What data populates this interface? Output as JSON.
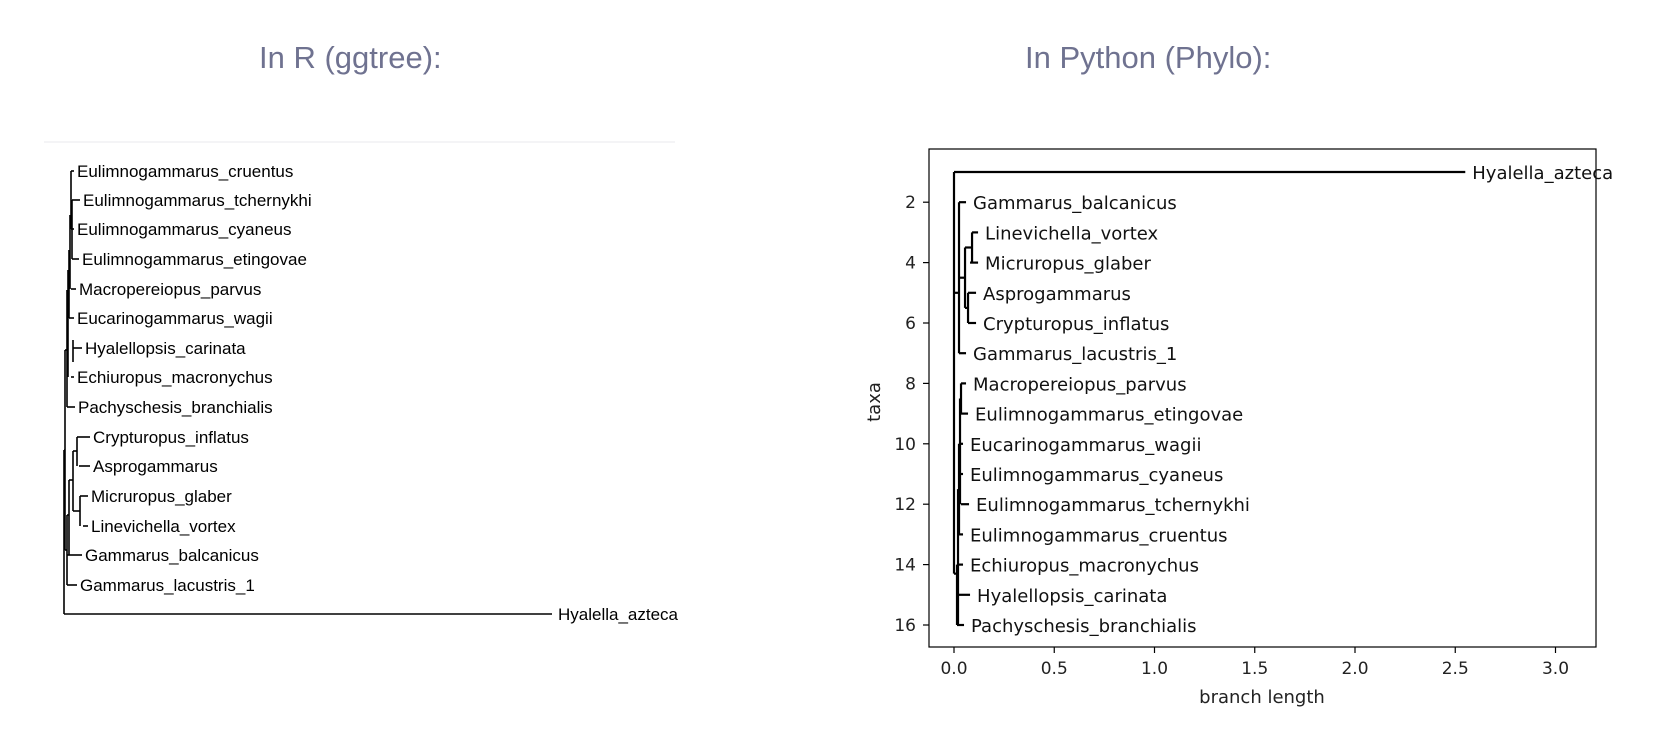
{
  "titles": {
    "left": "In R (ggtree):",
    "right": "In Python (Phylo):"
  },
  "colors": {
    "title": "#6f7290",
    "line": "#000000",
    "divider": "#e9e9ee"
  },
  "left_tree": {
    "tips": [
      "Eulimnogammarus_cruentus",
      "Eulimnogammarus_tchernykhi",
      "Eulimnogammarus_cyaneus",
      "Eulimnogammarus_etingovae",
      "Macropereiopus_parvus",
      "Eucarinogammarus_wagii",
      "Hyalellopsis_carinata",
      "Echiuropus_macronychus",
      "Pachyschesis_branchialis",
      "Crypturopus_inflatus",
      "Asprogammarus",
      "Micruropus_glaber",
      "Linevichella_vortex",
      "Gammarus_balcanicus",
      "Gammarus_lacustris_1",
      "Hyalella_azteca"
    ]
  },
  "right_tree": {
    "xlabel": "branch length",
    "ylabel": "taxa",
    "xticks": [
      "0.0",
      "0.5",
      "1.0",
      "1.5",
      "2.0",
      "2.5",
      "3.0"
    ],
    "yticks": [
      "2",
      "4",
      "6",
      "8",
      "10",
      "12",
      "14",
      "16"
    ],
    "tips": [
      "Hyalella_azteca",
      "Gammarus_balcanicus",
      "Linevichella_vortex",
      "Micruropus_glaber",
      "Asprogammarus",
      "Crypturopus_inflatus",
      "Gammarus_lacustris_1",
      "Macropereiopus_parvus",
      "Eulimnogammarus_etingovae",
      "Eucarinogammarus_wagii",
      "Eulimnogammarus_cyaneus",
      "Eulimnogammarus_tchernykhi",
      "Eulimnogammarus_cruentus",
      "Echiuropus_macronychus",
      "Hyalellopsis_carinata",
      "Pachyschesis_branchialis"
    ]
  }
}
